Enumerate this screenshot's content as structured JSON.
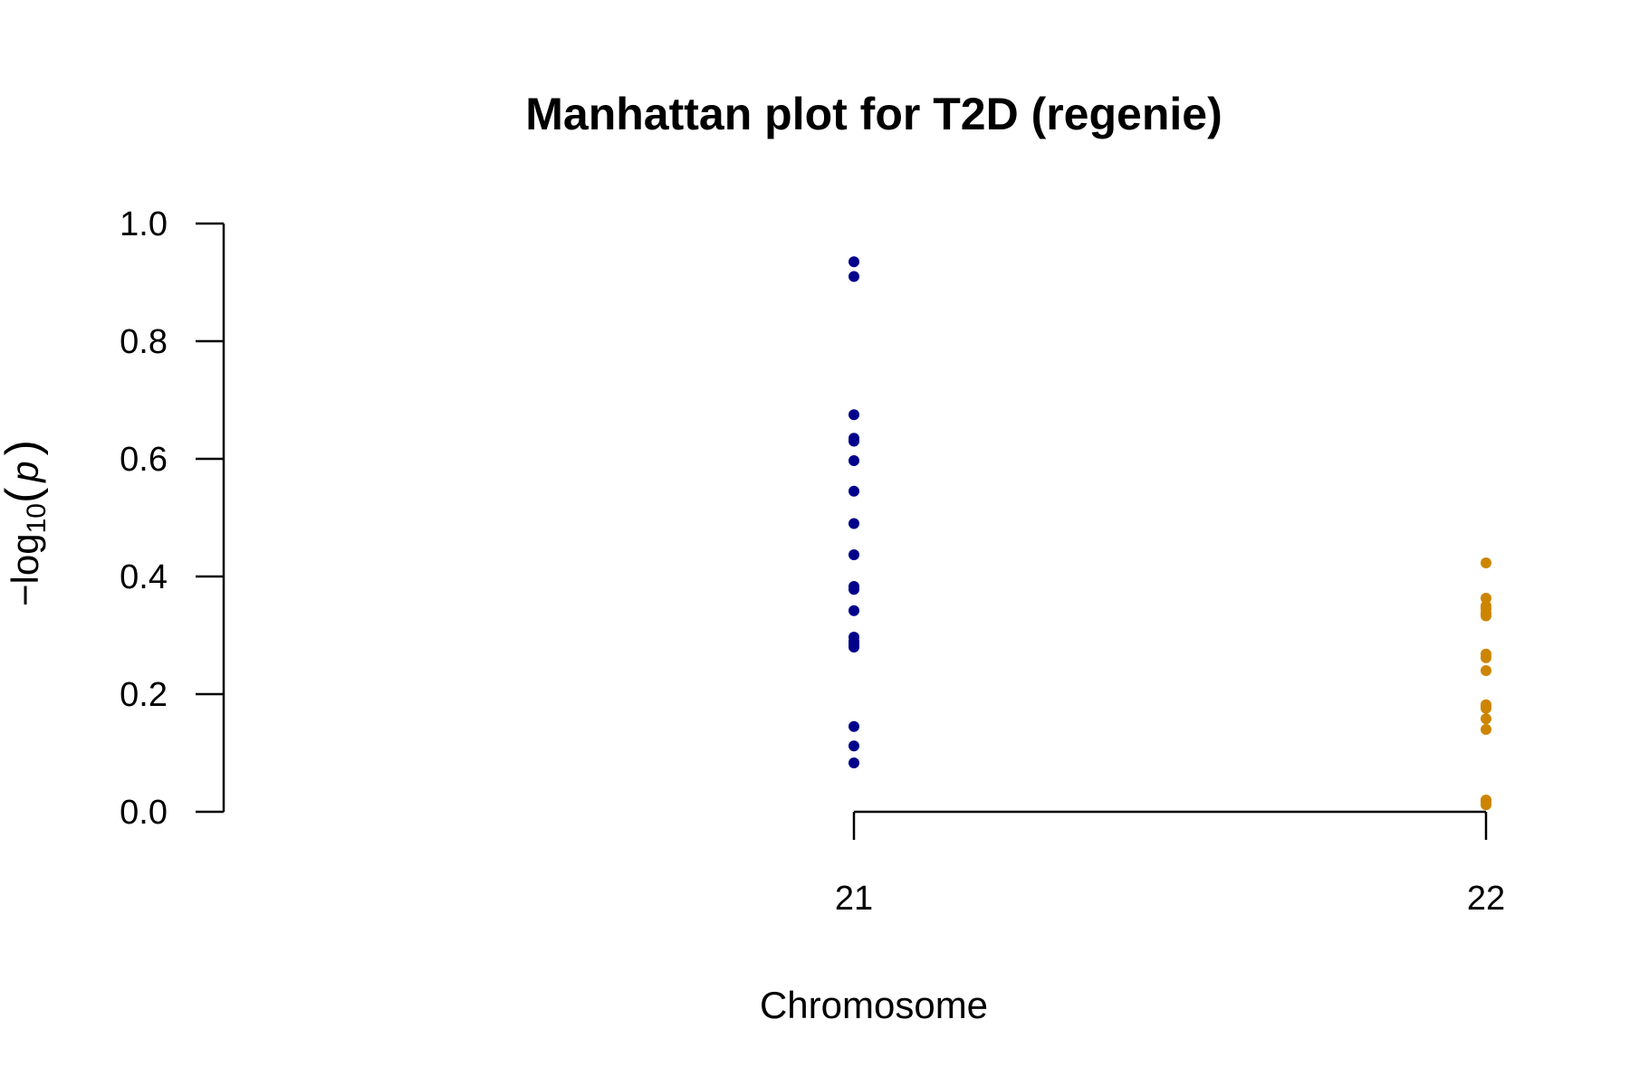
{
  "chart_data": {
    "type": "scatter",
    "title": "Manhattan plot for T2D (regenie)",
    "xlabel": "Chromosome",
    "ylabel": {
      "prefix": "−log",
      "subscript": "10",
      "open": "(",
      "var": "p",
      "close": ")"
    },
    "ylim": [
      0,
      1.0
    ],
    "yticks": [
      "0.0",
      "0.2",
      "0.4",
      "0.6",
      "0.8",
      "1.0"
    ],
    "xticks": [
      "21",
      "22"
    ],
    "grid": false,
    "legend": "none",
    "series": [
      {
        "chromosome": "21",
        "color": "#00008b",
        "y": [
          0.935,
          0.91,
          0.675,
          0.635,
          0.63,
          0.597,
          0.545,
          0.49,
          0.437,
          0.383,
          0.378,
          0.342,
          0.297,
          0.29,
          0.285,
          0.28,
          0.145,
          0.112,
          0.083
        ]
      },
      {
        "chromosome": "22",
        "color": "#cd8500",
        "y": [
          0.423,
          0.363,
          0.35,
          0.345,
          0.338,
          0.333,
          0.268,
          0.262,
          0.24,
          0.182,
          0.18,
          0.176,
          0.158,
          0.14,
          0.02,
          0.016,
          0.012
        ]
      }
    ]
  }
}
